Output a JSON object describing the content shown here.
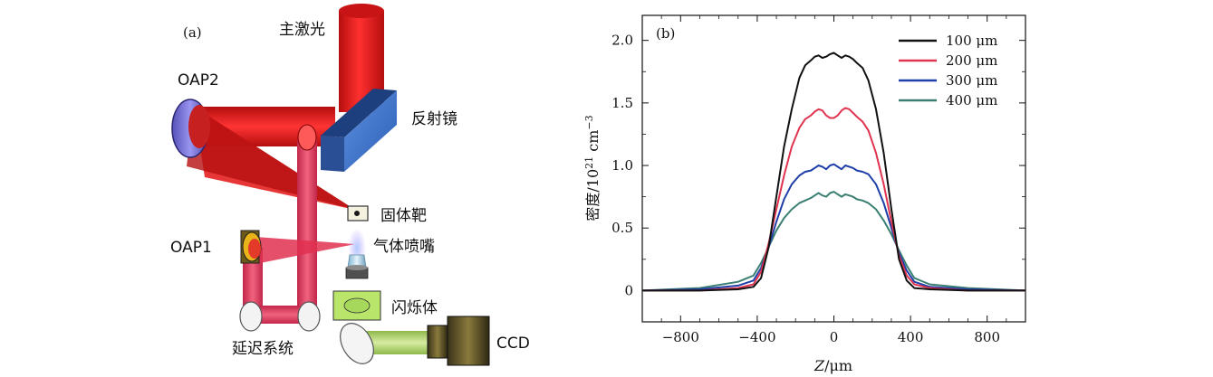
{
  "panel_a": {
    "tag": "(a)",
    "labels": {
      "main_laser": "主激光",
      "oap2": "OAP2",
      "mirror": "反射镜",
      "solid_target": "固体靶",
      "oap1": "OAP1",
      "gas_nozzle": "气体喷嘴",
      "scintillator": "闪烁体",
      "ccd": "CCD",
      "delay_system": "延迟系统"
    }
  },
  "chart_data": {
    "type": "line",
    "panel_tag": "(b)",
    "xlabel_var": "Z",
    "xlabel_unit": "/μm",
    "ylabel_main": "密度/10",
    "ylabel_exp": "21",
    "ylabel_unit": " cm",
    "ylabel_unit_exp": "−3",
    "xlim": [
      -1000,
      1000
    ],
    "ylim": [
      -0.25,
      2.2
    ],
    "xticks": [
      -800,
      -400,
      0,
      400,
      800
    ],
    "xtick_labels": [
      "−800",
      "−400",
      "0",
      "400",
      "800"
    ],
    "yticks": [
      0,
      0.5,
      1.0,
      1.5,
      2.0
    ],
    "ytick_labels": [
      "0",
      "0.5",
      "1.0",
      "1.5",
      "2.0"
    ],
    "legend_position": "top-right",
    "series": [
      {
        "name": "100 μm",
        "color": "#111111",
        "x": [
          -1000,
          -700,
          -500,
          -420,
          -380,
          -340,
          -300,
          -260,
          -220,
          -180,
          -150,
          -120,
          -100,
          -80,
          -60,
          -40,
          -20,
          0,
          20,
          40,
          60,
          80,
          100,
          120,
          150,
          180,
          220,
          260,
          300,
          340,
          380,
          420,
          500,
          700,
          1000
        ],
        "y": [
          0,
          0,
          0.01,
          0.03,
          0.1,
          0.35,
          0.75,
          1.15,
          1.45,
          1.7,
          1.8,
          1.84,
          1.87,
          1.88,
          1.86,
          1.87,
          1.89,
          1.9,
          1.88,
          1.86,
          1.88,
          1.87,
          1.85,
          1.82,
          1.78,
          1.68,
          1.45,
          1.1,
          0.65,
          0.25,
          0.08,
          0.02,
          0.01,
          0,
          0
        ]
      },
      {
        "name": "200 μm",
        "color": "#e0334f",
        "x": [
          -1000,
          -700,
          -500,
          -420,
          -380,
          -340,
          -300,
          -260,
          -220,
          -180,
          -150,
          -120,
          -100,
          -80,
          -60,
          -40,
          -20,
          0,
          20,
          40,
          60,
          80,
          100,
          120,
          150,
          180,
          220,
          260,
          300,
          340,
          380,
          420,
          500,
          700,
          1000
        ],
        "y": [
          0,
          0,
          0.02,
          0.05,
          0.15,
          0.38,
          0.65,
          0.92,
          1.15,
          1.3,
          1.37,
          1.4,
          1.43,
          1.45,
          1.44,
          1.4,
          1.38,
          1.38,
          1.4,
          1.44,
          1.46,
          1.45,
          1.42,
          1.39,
          1.35,
          1.28,
          1.1,
          0.85,
          0.55,
          0.28,
          0.12,
          0.05,
          0.02,
          0,
          0
        ]
      },
      {
        "name": "300 μm",
        "color": "#1f3fa8",
        "x": [
          -1000,
          -700,
          -500,
          -420,
          -380,
          -340,
          -300,
          -260,
          -220,
          -180,
          -150,
          -120,
          -100,
          -80,
          -60,
          -40,
          -20,
          0,
          20,
          40,
          60,
          80,
          100,
          120,
          150,
          180,
          220,
          260,
          300,
          340,
          380,
          420,
          500,
          700,
          1000
        ],
        "y": [
          0,
          0.01,
          0.04,
          0.08,
          0.18,
          0.35,
          0.55,
          0.73,
          0.85,
          0.92,
          0.95,
          0.96,
          0.98,
          1.0,
          0.99,
          0.97,
          1.0,
          1.01,
          0.99,
          0.97,
          1.0,
          0.99,
          0.98,
          0.96,
          0.95,
          0.93,
          0.85,
          0.7,
          0.5,
          0.3,
          0.16,
          0.07,
          0.03,
          0.01,
          0
        ]
      },
      {
        "name": "400 μm",
        "color": "#3a7f72",
        "x": [
          -1000,
          -700,
          -500,
          -420,
          -380,
          -340,
          -300,
          -260,
          -220,
          -180,
          -150,
          -120,
          -100,
          -80,
          -60,
          -40,
          -20,
          0,
          20,
          40,
          60,
          80,
          100,
          120,
          150,
          180,
          220,
          260,
          300,
          340,
          380,
          420,
          500,
          700,
          1000
        ],
        "y": [
          0,
          0.02,
          0.07,
          0.12,
          0.22,
          0.35,
          0.48,
          0.58,
          0.65,
          0.7,
          0.72,
          0.74,
          0.76,
          0.78,
          0.76,
          0.75,
          0.78,
          0.79,
          0.77,
          0.75,
          0.77,
          0.76,
          0.75,
          0.73,
          0.72,
          0.7,
          0.65,
          0.56,
          0.45,
          0.32,
          0.2,
          0.1,
          0.05,
          0.02,
          0
        ]
      }
    ]
  }
}
